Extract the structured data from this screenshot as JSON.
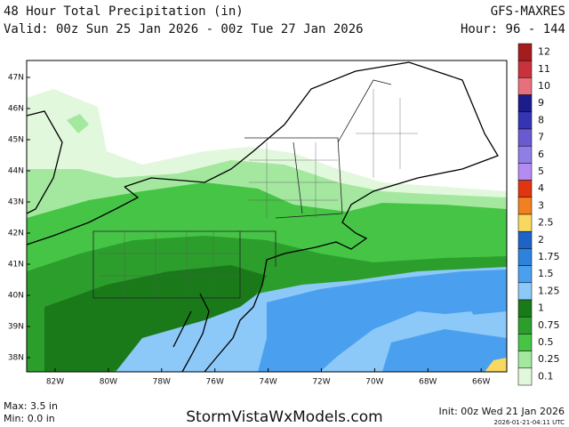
{
  "header": {
    "title": "48 Hour Total Precipitation (in)",
    "valid": "Valid: 00z Sun 25 Jan 2026 - 00z Tue 27 Jan 2026",
    "model": "GFS-MAXRES",
    "hours": "Hour: 96 - 144"
  },
  "lat_labels": [
    "47N",
    "46N",
    "45N",
    "44N",
    "43N",
    "42N",
    "41N",
    "40N",
    "39N",
    "38N"
  ],
  "lon_labels": [
    "82W",
    "80W",
    "78W",
    "76W",
    "74W",
    "72W",
    "70W",
    "68W",
    "66W"
  ],
  "legend": {
    "items": [
      {
        "label": "12",
        "color": "#a51c1c"
      },
      {
        "label": "11",
        "color": "#c8323c"
      },
      {
        "label": "10",
        "color": "#e8707c"
      },
      {
        "label": "9",
        "color": "#1c1c8c"
      },
      {
        "label": "8",
        "color": "#3434b4"
      },
      {
        "label": "7",
        "color": "#6a5ad2"
      },
      {
        "label": "6",
        "color": "#8f7ee6"
      },
      {
        "label": "5",
        "color": "#b48cf0"
      },
      {
        "label": "4",
        "color": "#e23410"
      },
      {
        "label": "3",
        "color": "#f08020"
      },
      {
        "label": "2.5",
        "color": "#f8d860"
      },
      {
        "label": "2",
        "color": "#1e64c8"
      },
      {
        "label": "1.75",
        "color": "#2c82dc"
      },
      {
        "label": "1.5",
        "color": "#4aa0ee"
      },
      {
        "label": "1.25",
        "color": "#8cc8f8"
      },
      {
        "label": "1",
        "color": "#1a7a1a"
      },
      {
        "label": "0.75",
        "color": "#2c9e2c"
      },
      {
        "label": "0.5",
        "color": "#46c446"
      },
      {
        "label": "0.25",
        "color": "#a4e8a0"
      },
      {
        "label": "0.1",
        "color": "#e2f8dc"
      }
    ]
  },
  "footer": {
    "max": "Max: 3.5 in",
    "min": "Min: 0.0 in",
    "site": "StormVistaWxModels.com",
    "init": "Init: 00z Wed 21 Jan 2026",
    "stamp": "2026-01-21-04:11 UTC"
  }
}
